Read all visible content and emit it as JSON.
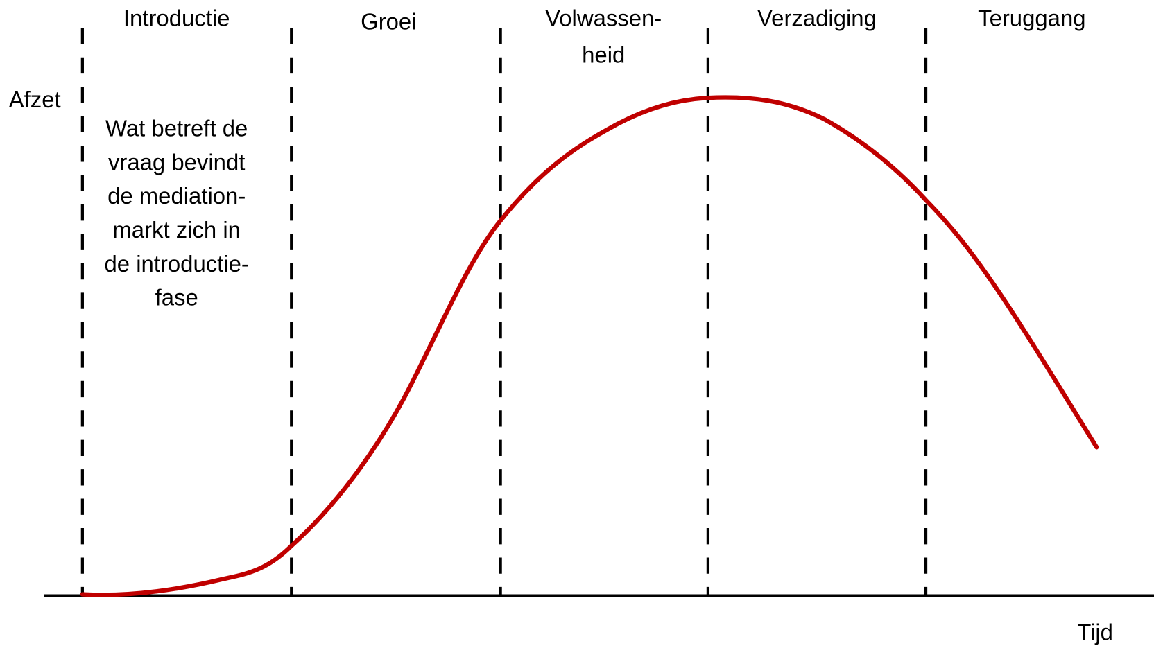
{
  "phases": [
    {
      "lines": [
        "Introductie"
      ]
    },
    {
      "lines": [
        "Groei"
      ]
    },
    {
      "lines": [
        "Volwassen-",
        "heid"
      ]
    },
    {
      "lines": [
        "Verzadiging"
      ]
    },
    {
      "lines": [
        "Teruggang"
      ]
    }
  ],
  "y_axis_label": "Afzet",
  "x_axis_label": "Tijd",
  "annotation": {
    "lines": [
      "Wat betreft de",
      "vraag bevindt",
      "de mediation-",
      "markt zich in",
      "de introductie-",
      "fase"
    ]
  }
}
